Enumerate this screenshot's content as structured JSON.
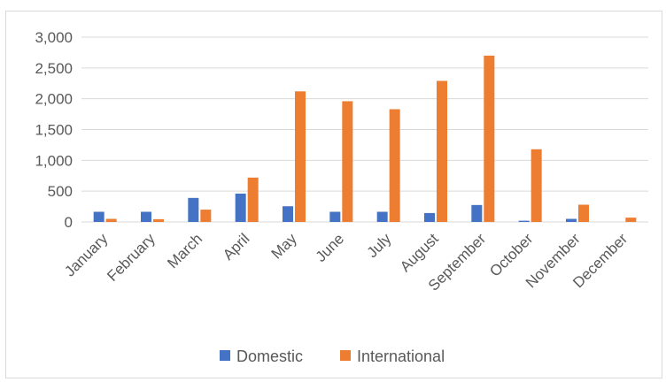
{
  "chart_data": {
    "type": "bar",
    "title": "",
    "xlabel": "",
    "ylabel": "",
    "categories": [
      "January",
      "February",
      "March",
      "April",
      "May",
      "June",
      "July",
      "August",
      "September",
      "October",
      "November",
      "December"
    ],
    "series": [
      {
        "name": "Domestic",
        "color": "#4472c4",
        "values": [
          165,
          165,
          390,
          460,
          255,
          165,
          165,
          145,
          275,
          20,
          50,
          0
        ]
      },
      {
        "name": "International",
        "color": "#ed7d31",
        "values": [
          50,
          45,
          200,
          720,
          2120,
          1960,
          1830,
          2290,
          2700,
          1180,
          280,
          70
        ]
      }
    ],
    "ylim": [
      0,
      3000
    ],
    "yticks": [
      "0",
      "500",
      "1,000",
      "1,500",
      "2,000",
      "2,500",
      "3,000"
    ],
    "grid": true,
    "legend_position": "bottom"
  }
}
